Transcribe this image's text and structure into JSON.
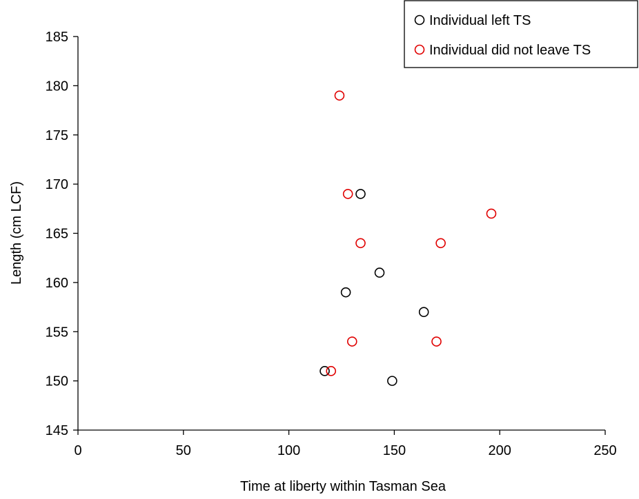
{
  "chart_data": {
    "type": "scatter",
    "xlabel": "Time at liberty within Tasman Sea",
    "ylabel": "Length (cm LCF)",
    "xlim": [
      0,
      250
    ],
    "ylim": [
      145,
      185
    ],
    "x_ticks": [
      "0",
      "50",
      "100",
      "150",
      "200",
      "250"
    ],
    "y_ticks": [
      "145",
      "150",
      "155",
      "160",
      "165",
      "170",
      "175",
      "180",
      "185"
    ],
    "grid": false,
    "legend_position": "top-right",
    "series": [
      {
        "name": "Individual left TS",
        "color": "#000000",
        "marker": "open-circle",
        "points": [
          {
            "x": 117,
            "y": 151
          },
          {
            "x": 127,
            "y": 159
          },
          {
            "x": 134,
            "y": 169
          },
          {
            "x": 143,
            "y": 161
          },
          {
            "x": 149,
            "y": 150
          },
          {
            "x": 164,
            "y": 157
          }
        ]
      },
      {
        "name": "Individual did not leave TS",
        "color": "#e00000",
        "marker": "open-circle",
        "points": [
          {
            "x": 120,
            "y": 151
          },
          {
            "x": 124,
            "y": 179
          },
          {
            "x": 128,
            "y": 169
          },
          {
            "x": 130,
            "y": 154
          },
          {
            "x": 134,
            "y": 164
          },
          {
            "x": 170,
            "y": 154
          },
          {
            "x": 172,
            "y": 164
          },
          {
            "x": 196,
            "y": 167
          }
        ]
      }
    ]
  }
}
